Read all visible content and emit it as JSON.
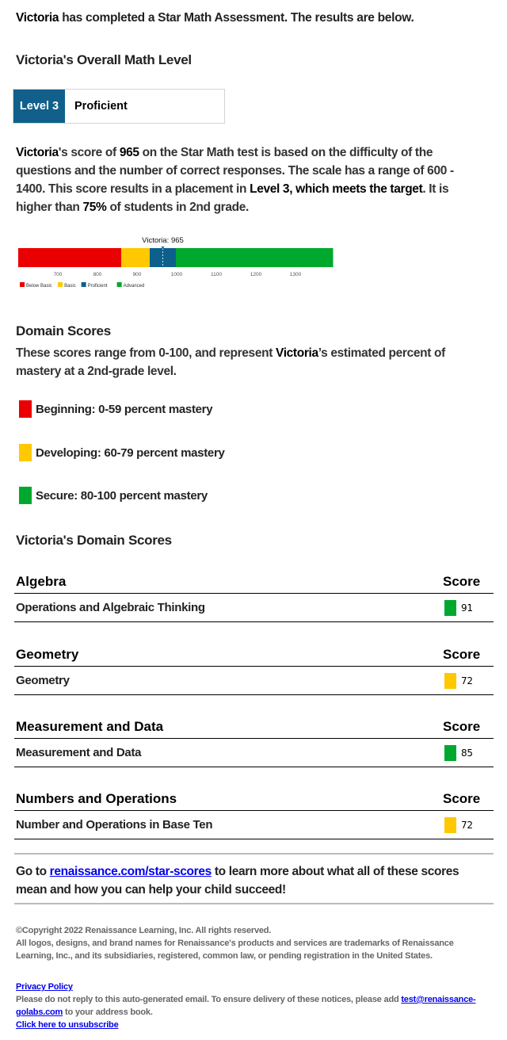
{
  "intro": {
    "name": "Victoria",
    "text": " has completed a Star Math Assessment. The results are below."
  },
  "overall": {
    "name": "Victoria",
    "title_suffix": "'s Overall Math Level",
    "level": "Level 3",
    "level_name": "Proficient",
    "level_color": "#11608b"
  },
  "summary": {
    "name": "Victoria",
    "t1": "'s score of ",
    "score": "965",
    "t2": " on the Star Math test is based on the difficulty of the questions and the number of correct responses. The scale has a range of 600 - 1400. This score results in a placement in ",
    "level": "Level 3",
    "t3": ", which meets the target",
    "t4": ". It is higher than ",
    "pct": "75%",
    "t5": " of students in 2nd grade."
  },
  "chart_data": {
    "type": "bar",
    "orientation": "horizontal-stacked-range",
    "xlim": [
      600,
      1400
    ],
    "ticks": [
      700,
      800,
      900,
      1000,
      1100,
      1200,
      1300
    ],
    "bands": [
      {
        "name": "Below Basic",
        "from": 600,
        "to": 860,
        "color": "#ea0000"
      },
      {
        "name": "Basic",
        "from": 860,
        "to": 932,
        "color": "#ffc800"
      },
      {
        "name": "Proficient",
        "from": 932,
        "to": 998,
        "color": "#0d5f8c"
      },
      {
        "name": "Advanced",
        "from": 998,
        "to": 1395,
        "color": "#00a82d"
      }
    ],
    "marker": {
      "label": "Victoria: 965",
      "value": 965
    },
    "legend": "bottom-left"
  },
  "domain_info": {
    "title": "Domain Scores",
    "desc1": "These scores range from 0-100, and represent ",
    "name": "Victoria",
    "desc2": "’s estimated percent of mastery at a 2nd-grade level.",
    "levels": [
      {
        "label": "Beginning: 0-59 percent mastery",
        "color": "#ea0000"
      },
      {
        "label": "Developing: 60-79 percent mastery",
        "color": "#ffc800"
      },
      {
        "label": "Secure: 80-100 percent mastery",
        "color": "#00a82d"
      }
    ]
  },
  "domain_scores": {
    "name": "Victoria",
    "title_suffix": "'s Domain Scores",
    "score_header": "Score",
    "groups": [
      {
        "title": "Algebra",
        "rows": [
          {
            "label": "Operations and Algebraic Thinking",
            "score": "91",
            "color": "#00a82d"
          }
        ]
      },
      {
        "title": "Geometry",
        "rows": [
          {
            "label": "Geometry",
            "score": "72",
            "color": "#ffc800"
          }
        ]
      },
      {
        "title": "Measurement and Data",
        "rows": [
          {
            "label": "Measurement and Data",
            "score": "85",
            "color": "#00a82d"
          }
        ]
      },
      {
        "title": "Numbers and Operations",
        "rows": [
          {
            "label": "Number and Operations in Base Ten",
            "score": "72",
            "color": "#ffc800"
          }
        ]
      }
    ]
  },
  "learn_more": {
    "t1": "Go to ",
    "link": "renaissance.com/star-scores",
    "t2": " to learn more about what all of these scores mean and how you can help your child succeed!"
  },
  "footer": {
    "copyright": "©Copyright 2022 Renaissance Learning, Inc. All rights reserved.",
    "trademark": "All logos, designs, and brand names for Renaissance's products and services are trademarks of Renaissance Learning, Inc., and its subsidiaries, registered, common law, or pending registration in the United States.",
    "privacy": "Privacy Policy",
    "noreply1": "Please do not reply to this auto-generated email. To ensure delivery of these notices, please add ",
    "email": "test@renaissance-golabs.com",
    "noreply2": " to your address book.",
    "unsubscribe": "Click here to unsubscribe"
  }
}
